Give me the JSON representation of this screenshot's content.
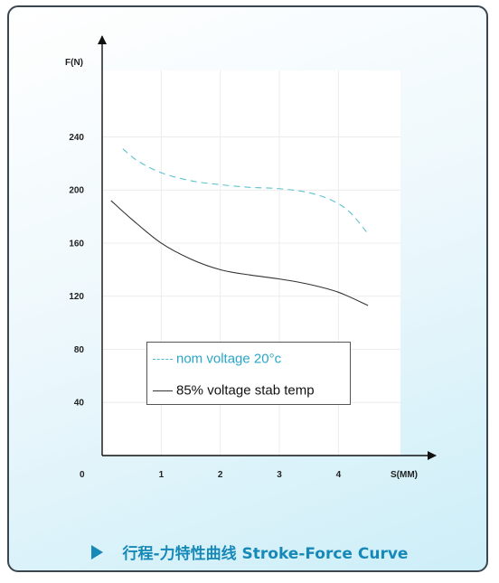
{
  "chart_data": {
    "type": "line",
    "xlabel": "S(MM)",
    "ylabel": "F(N)",
    "origin_label": "0",
    "x_ticks": [
      1,
      2,
      3,
      4
    ],
    "y_ticks": [
      40,
      80,
      120,
      160,
      200,
      240
    ],
    "xlim": [
      0,
      5.05
    ],
    "ylim": [
      0,
      290
    ],
    "grid": true,
    "legend_position": "bottom-center",
    "series": [
      {
        "name": "nom voltage 20°c",
        "style": "dashed",
        "color": "#5cc2cf",
        "x": [
          0.35,
          0.6,
          1.0,
          1.5,
          2.0,
          2.5,
          3.0,
          3.5,
          3.9,
          4.2,
          4.5
        ],
        "y": [
          231,
          222,
          213,
          207,
          204,
          202,
          201,
          198,
          192,
          183,
          167
        ]
      },
      {
        "name": "85% voltage stab temp",
        "style": "solid",
        "color": "#333333",
        "x": [
          0.15,
          0.5,
          1.0,
          1.5,
          2.0,
          2.5,
          3.0,
          3.5,
          4.0,
          4.5
        ],
        "y": [
          192,
          178,
          160,
          148,
          140,
          136,
          133,
          129,
          123,
          113
        ]
      }
    ]
  },
  "legend": {
    "dashed_label": "nom  voltage 20°c",
    "solid_label": "85%  voltage stab temp"
  },
  "caption": {
    "text": "行程-力特性曲线 Stroke-Force Curve",
    "color": "#1689b8"
  }
}
